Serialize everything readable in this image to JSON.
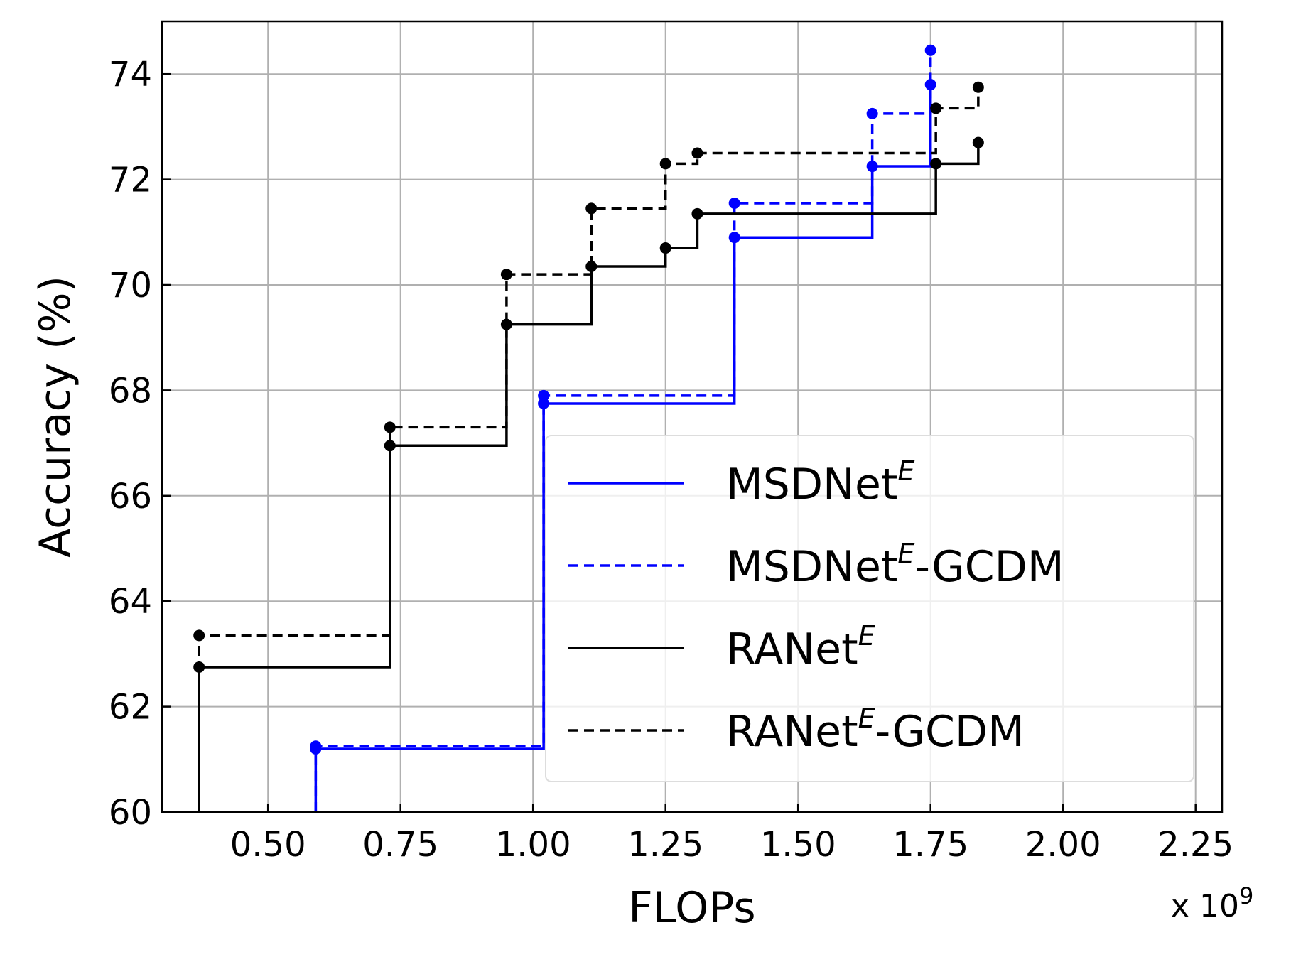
{
  "chart_data": {
    "type": "line",
    "step_style": "post",
    "xlabel": "FLOPs",
    "ylabel": "Accuracy (%)",
    "x_multiplier": {
      "base": "x 10",
      "exponent": "9"
    },
    "xlim": [
      0.3,
      2.3
    ],
    "ylim": [
      60,
      75
    ],
    "xticks": [
      0.5,
      0.75,
      1.0,
      1.25,
      1.5,
      1.75,
      2.0,
      2.25
    ],
    "xtick_labels": [
      "0.50",
      "0.75",
      "1.00",
      "1.25",
      "1.50",
      "1.75",
      "2.00",
      "2.25"
    ],
    "yticks": [
      60,
      62,
      64,
      66,
      68,
      70,
      72,
      74
    ],
    "ytick_labels": [
      "60",
      "62",
      "64",
      "66",
      "68",
      "70",
      "72",
      "74"
    ],
    "grid": true,
    "legend_position": "lower-right",
    "series": [
      {
        "name": "MSDNet",
        "name_sup": "E",
        "name_suffix": "",
        "color": "#0000ff",
        "dash": "solid",
        "x": [
          0.59,
          1.02,
          1.38,
          1.64,
          1.75
        ],
        "y": [
          61.2,
          67.75,
          70.9,
          72.25,
          73.8
        ]
      },
      {
        "name": "MSDNet",
        "name_sup": "E",
        "name_suffix": "-GCDM",
        "color": "#0000ff",
        "dash": "dashed",
        "x": [
          0.59,
          1.02,
          1.38,
          1.64,
          1.75
        ],
        "y": [
          61.25,
          67.9,
          71.55,
          73.25,
          74.45
        ]
      },
      {
        "name": "RANet",
        "name_sup": "E",
        "name_suffix": "",
        "color": "#000000",
        "dash": "solid",
        "x": [
          0.37,
          0.73,
          0.95,
          1.11,
          1.25,
          1.31,
          1.76,
          1.84
        ],
        "y": [
          62.75,
          66.95,
          69.25,
          70.35,
          70.7,
          71.35,
          72.3,
          72.7
        ]
      },
      {
        "name": "RANet",
        "name_sup": "E",
        "name_suffix": "-GCDM",
        "color": "#000000",
        "dash": "dashed",
        "x": [
          0.37,
          0.73,
          0.95,
          1.11,
          1.25,
          1.31,
          1.76,
          1.84
        ],
        "y": [
          63.35,
          67.3,
          70.2,
          71.45,
          72.3,
          72.5,
          73.35,
          73.75
        ]
      }
    ]
  }
}
